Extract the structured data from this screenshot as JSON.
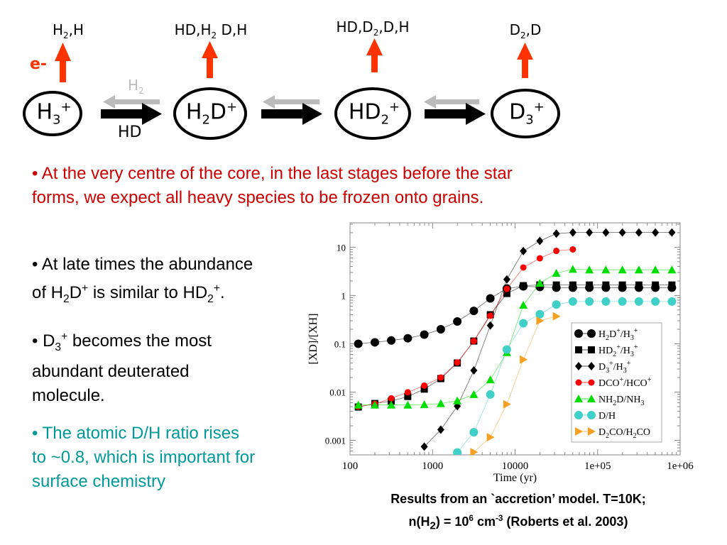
{
  "diagram": {
    "top_labels": [
      [
        [
          "H",
          ""
        ],
        [
          "2",
          "sub"
        ],
        [
          ",H",
          ""
        ]
      ],
      [
        [
          "HD,H",
          ""
        ],
        [
          "2",
          "sub"
        ],
        [
          " D,H",
          ""
        ]
      ],
      [
        [
          "HD,D",
          ""
        ],
        [
          "2",
          "sub"
        ],
        [
          ",D,H",
          ""
        ]
      ],
      [
        [
          "D",
          ""
        ],
        [
          "2",
          "sub"
        ],
        [
          ",D",
          ""
        ]
      ]
    ],
    "species": [
      [
        [
          "H",
          ""
        ],
        [
          "3",
          "sub"
        ],
        [
          "+",
          "sup"
        ]
      ],
      [
        [
          "H",
          ""
        ],
        [
          "2",
          "sub"
        ],
        [
          "D",
          ""
        ],
        [
          "+",
          "sup"
        ]
      ],
      [
        [
          "HD",
          ""
        ],
        [
          "2",
          "sub"
        ],
        [
          "+",
          "sup"
        ]
      ],
      [
        [
          "D",
          ""
        ],
        [
          "3",
          "sub"
        ],
        [
          "+",
          "sup"
        ]
      ]
    ],
    "electron_label": "e-",
    "reverse_label": [
      [
        "H",
        ""
      ],
      [
        "2",
        "sub"
      ]
    ],
    "forward_label": "HD",
    "colors": {
      "electron_arrow": "#ff3300",
      "reverse_arrow": "#bbbbbb",
      "forward_arrow": "#000000"
    }
  },
  "intro_text": {
    "line1": "• At the very centre of the core, in the last stages before the star",
    "line2": "forms, we expect all heavy species to be frozen onto grains.",
    "color": "#cc0000"
  },
  "bullets": [
    {
      "lines": [
        [
          [
            "• At late times the abundance",
            ""
          ]
        ],
        [
          [
            "of H",
            ""
          ],
          [
            "2",
            "sub"
          ],
          [
            "D",
            ""
          ],
          [
            "+",
            "sup"
          ],
          [
            " is similar to HD",
            ""
          ],
          [
            "2",
            "sub"
          ],
          [
            "+",
            "sup"
          ],
          [
            ".",
            ""
          ]
        ]
      ],
      "color": "#000000"
    },
    {
      "lines": [
        [
          [
            "•  D",
            ""
          ],
          [
            "3",
            "sub"
          ],
          [
            "+",
            "sup"
          ],
          [
            " becomes the most",
            ""
          ]
        ],
        [
          [
            "abundant deuterated",
            ""
          ]
        ],
        [
          [
            "molecule.",
            ""
          ]
        ]
      ],
      "color": "#000000"
    },
    {
      "lines": [
        [
          [
            "• The atomic D/H ratio rises",
            ""
          ]
        ],
        [
          [
            "to ~0.8, which is important for",
            ""
          ]
        ],
        [
          [
            "surface chemistry",
            ""
          ]
        ]
      ],
      "color": "#009999"
    }
  ],
  "caption": {
    "line1": "Results from an `accretion’ model. T=10K;",
    "line2": [
      [
        "n(H",
        ""
      ],
      [
        "2",
        "sub"
      ],
      [
        ") = 10",
        ""
      ],
      [
        "6",
        "sup"
      ],
      [
        " cm",
        ""
      ],
      [
        "-3",
        "sup"
      ],
      [
        " (Roberts et al. 2003)",
        ""
      ]
    ]
  },
  "chart_data": {
    "type": "line",
    "xlabel": "Time (yr)",
    "ylabel": "[XD]/[XH]",
    "xscale": "log",
    "yscale": "log",
    "xlim": [
      100,
      1000000
    ],
    "ylim": [
      0.0005,
      32
    ],
    "xticks": [
      "100",
      "1000",
      "10000",
      "1e+05",
      "1e+06"
    ],
    "yticks": [
      "10",
      "1",
      "0.1",
      "0.01",
      "0.001"
    ],
    "legend_position": "lower-right",
    "x": [
      126,
      200,
      316,
      501,
      794,
      1259,
      1995,
      3162,
      5012,
      7943,
      12589,
      19953,
      31623,
      50119,
      79433,
      125893,
      199526,
      316228,
      501187,
      794328
    ],
    "series": [
      {
        "name": "H2D+/H3+",
        "label": [
          [
            "H",
            ""
          ],
          [
            "2",
            "sub"
          ],
          [
            "D",
            ""
          ],
          [
            "+",
            "sup"
          ],
          [
            "/H",
            ""
          ],
          [
            "3",
            "sub"
          ],
          [
            "+",
            "sup"
          ]
        ],
        "marker": "circle",
        "color": "#000000",
        "values": [
          0.1,
          0.107,
          0.117,
          0.13,
          0.155,
          0.2,
          0.29,
          0.48,
          0.87,
          1.4,
          1.55,
          1.5,
          1.45,
          1.45,
          1.45,
          1.45,
          1.45,
          1.45,
          1.45,
          1.45
        ]
      },
      {
        "name": "HD2+/H3+",
        "label": [
          [
            "HD",
            ""
          ],
          [
            "2",
            "sub"
          ],
          [
            "+",
            "sup"
          ],
          [
            "/H",
            ""
          ],
          [
            "3",
            "sub"
          ],
          [
            "+",
            "sup"
          ]
        ],
        "marker": "square",
        "color": "#000000",
        "values": [
          0.0049,
          0.0058,
          0.0065,
          0.0081,
          0.0115,
          0.019,
          0.04,
          0.114,
          0.4,
          1.1,
          1.6,
          1.65,
          1.65,
          1.65,
          1.65,
          1.65,
          1.65,
          1.65,
          1.65,
          1.65
        ]
      },
      {
        "name": "D3+/H3+",
        "label": [
          [
            "D",
            ""
          ],
          [
            "3",
            "sub"
          ],
          [
            "+",
            "sup"
          ],
          [
            "/H",
            ""
          ],
          [
            "3",
            "sub"
          ],
          [
            "+",
            "sup"
          ]
        ],
        "marker": "diamond",
        "color": "#000000",
        "values": [
          null,
          null,
          null,
          null,
          0.00074,
          0.00166,
          0.0051,
          0.028,
          0.24,
          2.15,
          8.3,
          13.5,
          19.1,
          20.2,
          20.2,
          20.2,
          20.2,
          20.2,
          20.2,
          20.2
        ]
      },
      {
        "name": "DCO+/HCO+",
        "label": [
          [
            "DCO",
            ""
          ],
          [
            "+",
            "sup"
          ],
          [
            "/HCO",
            ""
          ],
          [
            "+",
            "sup"
          ]
        ],
        "marker": "small-circle",
        "color": "#ff0000",
        "values": [
          0.005,
          0.0057,
          0.0074,
          0.0099,
          0.0136,
          0.02,
          0.041,
          0.114,
          0.38,
          1.37,
          3.8,
          5.9,
          8.4,
          9.0,
          null,
          null,
          null,
          null,
          null,
          null
        ]
      },
      {
        "name": "NH2D/NH3",
        "label": [
          [
            "NH",
            ""
          ],
          [
            "2",
            "sub"
          ],
          [
            "D/NH",
            ""
          ],
          [
            "3",
            "sub"
          ]
        ],
        "marker": "triangle-up",
        "color": "#00dd00",
        "values": [
          0.0054,
          0.0054,
          0.0054,
          0.0054,
          0.0055,
          0.0058,
          0.0066,
          0.0089,
          0.018,
          0.066,
          0.63,
          1.8,
          2.9,
          3.5,
          3.4,
          3.4,
          3.4,
          3.4,
          3.4,
          3.4
        ]
      },
      {
        "name": "D/H",
        "label": [
          [
            "D/H",
            ""
          ]
        ],
        "marker": "circle",
        "color": "#40d0c8",
        "values": [
          null,
          null,
          null,
          null,
          null,
          null,
          0.00056,
          0.00147,
          0.0089,
          0.076,
          0.266,
          0.41,
          0.65,
          0.75,
          0.75,
          0.75,
          0.75,
          0.75,
          0.75,
          0.75
        ]
      },
      {
        "name": "D2CO/H2CO",
        "label": [
          [
            "D",
            ""
          ],
          [
            "2",
            "sub"
          ],
          [
            "CO/H",
            ""
          ],
          [
            "2",
            "sub"
          ],
          [
            "CO",
            ""
          ]
        ],
        "marker": "triangle-right",
        "color": "#f5a020",
        "values": [
          null,
          null,
          null,
          null,
          null,
          null,
          null,
          0.00057,
          0.00116,
          0.0056,
          0.047,
          0.3,
          0.37,
          null,
          null,
          null,
          null,
          null,
          null,
          null
        ]
      }
    ]
  }
}
